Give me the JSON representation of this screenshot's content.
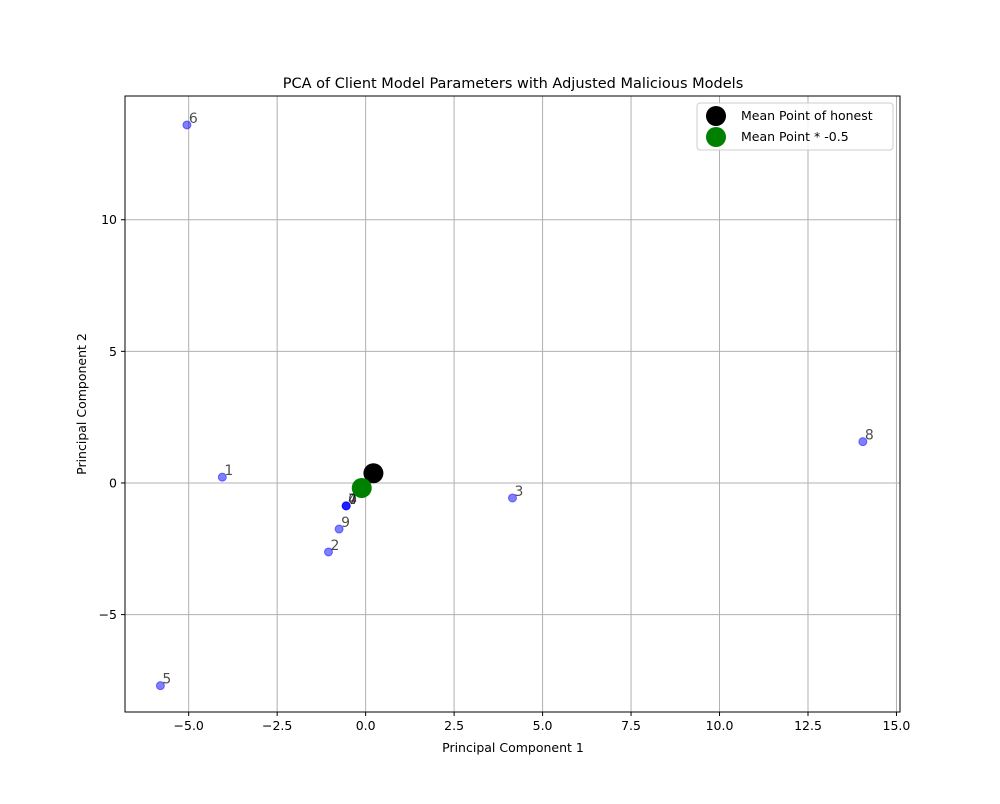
{
  "chart_data": {
    "type": "scatter",
    "title": "PCA of Client Model Parameters with Adjusted Malicious Models",
    "xlabel": "Principal Component 1",
    "ylabel": "Principal Component 2",
    "xlim": [
      -6.8,
      15.1
    ],
    "ylim": [
      -8.7,
      14.7
    ],
    "grid": true,
    "legend_position": "upper right",
    "xticks": [
      -5.0,
      -2.5,
      0.0,
      2.5,
      5.0,
      7.5,
      10.0,
      12.5,
      15.0
    ],
    "xtick_labels": [
      "−5.0",
      "−2.5",
      "0.0",
      "2.5",
      "5.0",
      "7.5",
      "10.0",
      "12.5",
      "15.0"
    ],
    "yticks": [
      -5,
      0,
      5,
      10
    ],
    "ytick_labels": [
      "−5",
      "0",
      "5",
      "10"
    ],
    "clients": [
      {
        "label": "0",
        "x": -0.55,
        "y": -0.87
      },
      {
        "label": "1",
        "x": -4.05,
        "y": 0.22
      },
      {
        "label": "2",
        "x": -1.05,
        "y": -2.62
      },
      {
        "label": "3",
        "x": 4.15,
        "y": -0.57
      },
      {
        "label": "4",
        "x": -0.55,
        "y": -0.87
      },
      {
        "label": "5",
        "x": -5.8,
        "y": -7.7
      },
      {
        "label": "6",
        "x": -5.05,
        "y": 13.6
      },
      {
        "label": "7",
        "x": -0.55,
        "y": -0.87
      },
      {
        "label": "8",
        "x": 14.05,
        "y": 1.57
      },
      {
        "label": "9",
        "x": -0.75,
        "y": -1.75
      }
    ],
    "client_color": "#0000ff",
    "series": [
      {
        "name": "Mean Point of honest",
        "x": 0.22,
        "y": 0.37,
        "color": "#000000"
      },
      {
        "name": "Mean Point * -0.5",
        "x": -0.11,
        "y": -0.19,
        "color": "#008000"
      }
    ]
  }
}
